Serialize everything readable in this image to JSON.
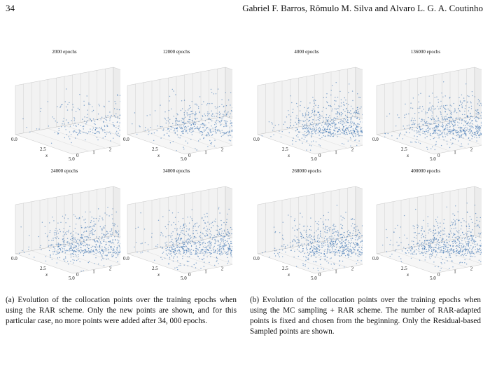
{
  "header": {
    "page_number": "34",
    "authors": "Gabriel F. Barros, Rômulo M. Silva  and Alvaro L. G. A. Coutinho"
  },
  "axis_labels": {
    "x_ticks": [
      "0.0",
      "2.5",
      "5.0"
    ],
    "t_ticks": [
      "0",
      "1",
      "2",
      "3",
      "4",
      "5",
      "6"
    ],
    "x_label": "x",
    "t_label": "t"
  },
  "point_color": "#1f5fa8",
  "panels": [
    {
      "title": "2000 epochs",
      "density": 0.25
    },
    {
      "title": "12000 epochs",
      "density": 0.55
    },
    {
      "title": "4000 epochs",
      "density": 0.85
    },
    {
      "title": "136000 epochs",
      "density": 0.85
    },
    {
      "title": "24000 epochs",
      "density": 0.8
    },
    {
      "title": "34000 epochs",
      "density": 0.85
    },
    {
      "title": "268000 epochs",
      "density": 0.85
    },
    {
      "title": "400000 epochs",
      "density": 0.85
    }
  ],
  "captions": {
    "a": "(a) Evolution of the collocation points over the training epochs when using the RAR scheme. Only the new points are shown, and for this particular case, no more points were added after 34, 000 epochs.",
    "b": "(b) Evolution of the collocation points over the training epochs when using the MC sampling + RAR scheme. The number of RAR-adapted points is fixed and chosen from the beginning. Only the Residual-based Sampled points are shown."
  }
}
